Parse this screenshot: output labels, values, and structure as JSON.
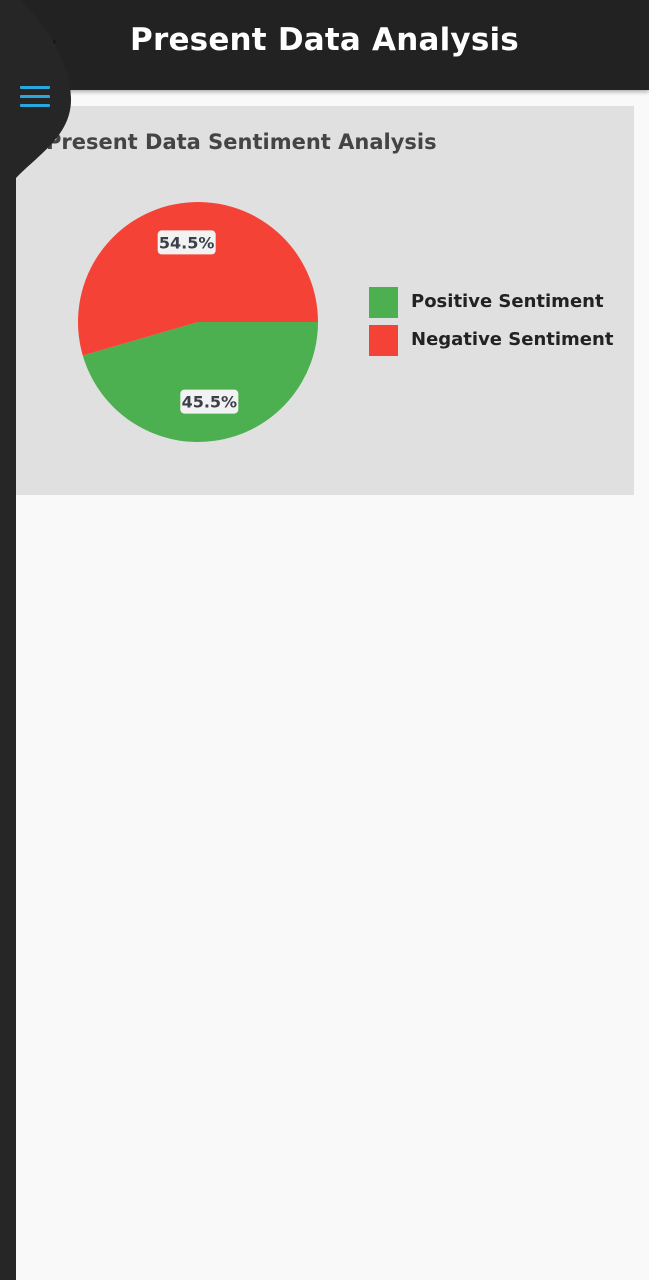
{
  "app_bar": {
    "title": "Present Data Analysis",
    "back_icon": "arrow-back-icon",
    "menu_icon": "hamburger-menu-icon"
  },
  "colors": {
    "app_bar": "#222222",
    "card": "#e0e0e0",
    "positive": "#4caf50",
    "negative": "#f44336",
    "menu_accent": "#29a8e0"
  },
  "card": {
    "title": "Present Data Sentiment Analysis"
  },
  "chart_data": {
    "type": "pie",
    "title": "Present Data Sentiment Analysis",
    "legend_position": "right",
    "slices": [
      {
        "name": "Positive Sentiment",
        "value": 45.5,
        "label": "45.5%",
        "color": "#4caf50"
      },
      {
        "name": "Negative Sentiment",
        "value": 54.5,
        "label": "54.5%",
        "color": "#f44336"
      }
    ]
  }
}
